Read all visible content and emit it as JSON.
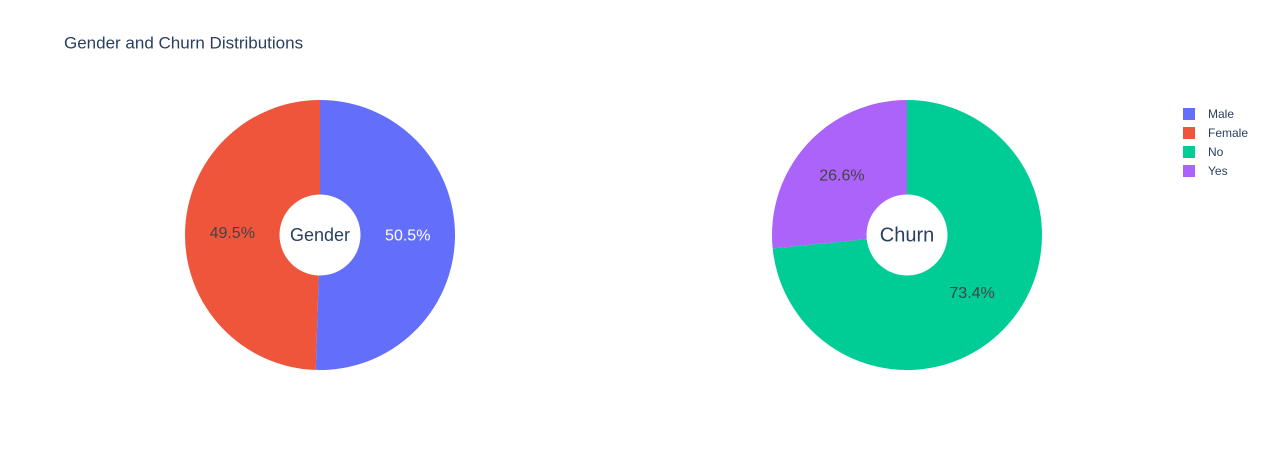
{
  "title": "Gender and Churn Distributions",
  "legend": "top-right",
  "chart_data": [
    {
      "type": "pie",
      "center_label": "Gender",
      "categories": [
        "Male",
        "Female"
      ],
      "values": [
        50.5,
        49.5
      ],
      "value_labels": [
        "50.5%",
        "49.5%"
      ],
      "colors": [
        "#636efa",
        "#ef553b"
      ],
      "hole": 0.3
    },
    {
      "type": "pie",
      "center_label": "Churn",
      "categories": [
        "No",
        "Yes"
      ],
      "values": [
        73.4,
        26.6
      ],
      "value_labels": [
        "73.4%",
        "26.6%"
      ],
      "colors": [
        "#00cc96",
        "#ab63fa"
      ],
      "hole": 0.3
    }
  ]
}
